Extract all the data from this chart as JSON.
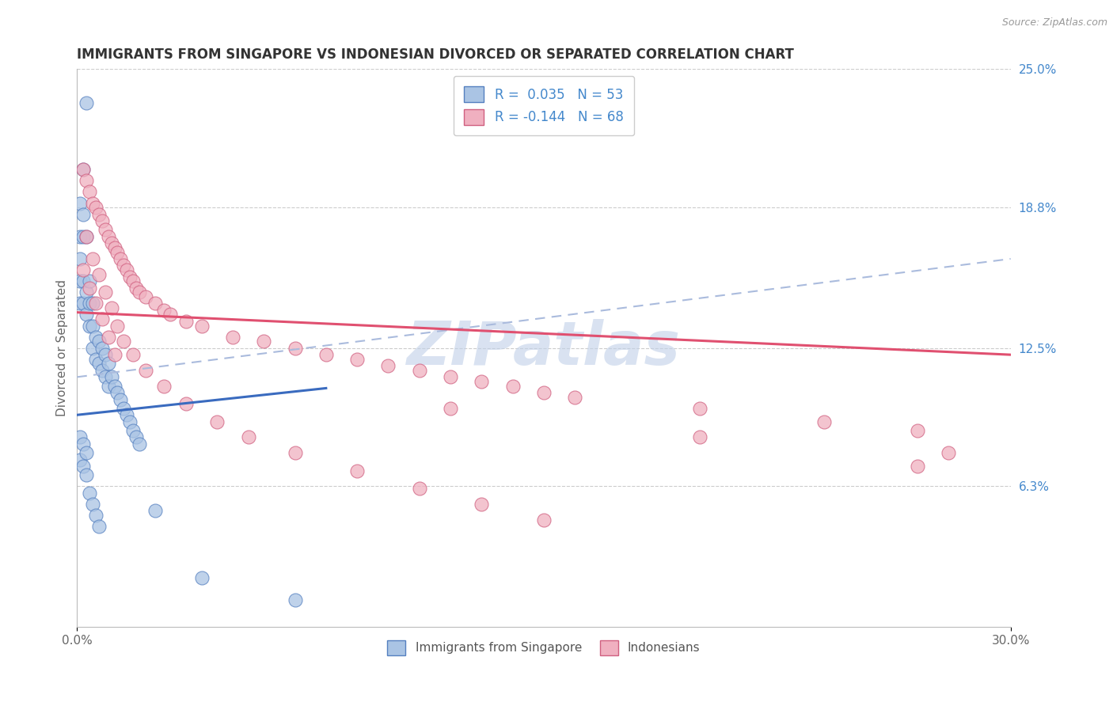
{
  "title": "IMMIGRANTS FROM SINGAPORE VS INDONESIAN DIVORCED OR SEPARATED CORRELATION CHART",
  "source_text": "Source: ZipAtlas.com",
  "ylabel": "Divorced or Separated",
  "x_label_blue": "Immigrants from Singapore",
  "x_label_pink": "Indonesians",
  "xlim": [
    0.0,
    0.3
  ],
  "ylim": [
    0.0,
    0.25
  ],
  "legend_blue_R": "0.035",
  "legend_blue_N": "53",
  "legend_pink_R": "-0.144",
  "legend_pink_N": "68",
  "blue_color": "#aac4e4",
  "blue_edge_color": "#5580c0",
  "blue_line_color": "#3a6bbf",
  "pink_color": "#f0b0c0",
  "pink_edge_color": "#d06080",
  "pink_line_color": "#e05070",
  "watermark": "ZIPatlas",
  "watermark_color": "#c0d0e8",
  "blue_solid_trend": [
    0.0,
    0.095,
    0.08,
    0.107
  ],
  "blue_dashed_trend": [
    0.0,
    0.112,
    0.3,
    0.165
  ],
  "pink_solid_trend": [
    0.0,
    0.141,
    0.3,
    0.122
  ],
  "blue_scatter_x": [
    0.003,
    0.002,
    0.001,
    0.001,
    0.001,
    0.002,
    0.002,
    0.003,
    0.001,
    0.001,
    0.002,
    0.002,
    0.003,
    0.003,
    0.004,
    0.004,
    0.004,
    0.005,
    0.005,
    0.005,
    0.006,
    0.006,
    0.007,
    0.007,
    0.008,
    0.008,
    0.009,
    0.009,
    0.01,
    0.01,
    0.011,
    0.012,
    0.013,
    0.014,
    0.015,
    0.016,
    0.017,
    0.018,
    0.019,
    0.02,
    0.001,
    0.001,
    0.002,
    0.002,
    0.003,
    0.003,
    0.004,
    0.005,
    0.006,
    0.007,
    0.025,
    0.04,
    0.07
  ],
  "blue_scatter_y": [
    0.235,
    0.205,
    0.19,
    0.175,
    0.165,
    0.185,
    0.175,
    0.175,
    0.155,
    0.145,
    0.155,
    0.145,
    0.15,
    0.14,
    0.155,
    0.145,
    0.135,
    0.145,
    0.135,
    0.125,
    0.13,
    0.12,
    0.128,
    0.118,
    0.125,
    0.115,
    0.122,
    0.112,
    0.118,
    0.108,
    0.112,
    0.108,
    0.105,
    0.102,
    0.098,
    0.095,
    0.092,
    0.088,
    0.085,
    0.082,
    0.085,
    0.075,
    0.082,
    0.072,
    0.078,
    0.068,
    0.06,
    0.055,
    0.05,
    0.045,
    0.052,
    0.022,
    0.012
  ],
  "pink_scatter_x": [
    0.002,
    0.003,
    0.004,
    0.005,
    0.006,
    0.007,
    0.008,
    0.009,
    0.01,
    0.011,
    0.012,
    0.013,
    0.014,
    0.015,
    0.016,
    0.017,
    0.018,
    0.019,
    0.02,
    0.022,
    0.025,
    0.028,
    0.03,
    0.035,
    0.04,
    0.05,
    0.06,
    0.07,
    0.08,
    0.09,
    0.1,
    0.11,
    0.12,
    0.13,
    0.14,
    0.15,
    0.16,
    0.2,
    0.24,
    0.27,
    0.003,
    0.005,
    0.007,
    0.009,
    0.011,
    0.013,
    0.015,
    0.018,
    0.022,
    0.028,
    0.035,
    0.045,
    0.055,
    0.07,
    0.09,
    0.11,
    0.13,
    0.15,
    0.002,
    0.004,
    0.006,
    0.008,
    0.01,
    0.012,
    0.12,
    0.2,
    0.28,
    0.27
  ],
  "pink_scatter_y": [
    0.205,
    0.2,
    0.195,
    0.19,
    0.188,
    0.185,
    0.182,
    0.178,
    0.175,
    0.172,
    0.17,
    0.168,
    0.165,
    0.162,
    0.16,
    0.157,
    0.155,
    0.152,
    0.15,
    0.148,
    0.145,
    0.142,
    0.14,
    0.137,
    0.135,
    0.13,
    0.128,
    0.125,
    0.122,
    0.12,
    0.117,
    0.115,
    0.112,
    0.11,
    0.108,
    0.105,
    0.103,
    0.098,
    0.092,
    0.088,
    0.175,
    0.165,
    0.158,
    0.15,
    0.143,
    0.135,
    0.128,
    0.122,
    0.115,
    0.108,
    0.1,
    0.092,
    0.085,
    0.078,
    0.07,
    0.062,
    0.055,
    0.048,
    0.16,
    0.152,
    0.145,
    0.138,
    0.13,
    0.122,
    0.098,
    0.085,
    0.078,
    0.072
  ]
}
